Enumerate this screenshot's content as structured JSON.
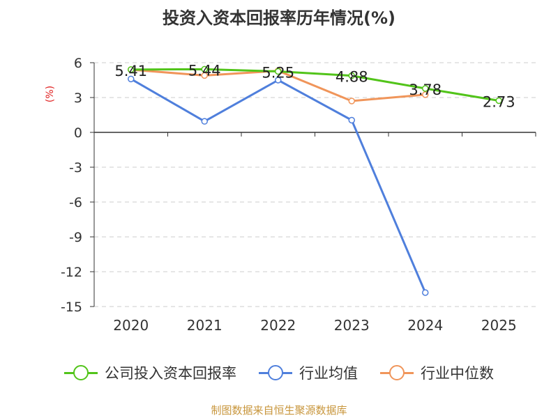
{
  "chart_data": {
    "type": "line",
    "title": "投资入资本回报率历年情况(%)",
    "ylabel": "(%)",
    "xlabel": "",
    "categories": [
      "2020",
      "2021",
      "2022",
      "2023",
      "2024",
      "2025"
    ],
    "ylim": [
      -15,
      6
    ],
    "yticks": [
      6,
      3,
      0,
      -3,
      -6,
      -9,
      -12,
      -15
    ],
    "grid": true,
    "legend_position": "bottom",
    "series": [
      {
        "name": "公司投入资本回报率",
        "color": "#52c41a",
        "values": [
          5.41,
          5.44,
          5.25,
          4.88,
          3.78,
          2.73
        ],
        "labels": [
          "5.41",
          "5.44",
          "5.25",
          "4.88",
          "3.78",
          "2.73"
        ]
      },
      {
        "name": "行业均值",
        "color": "#4f7fdc",
        "values": [
          4.6,
          0.95,
          4.5,
          1.05,
          -13.8,
          null
        ]
      },
      {
        "name": "行业中位数",
        "color": "#f0955a",
        "values": [
          5.4,
          4.9,
          5.3,
          2.7,
          3.25,
          null
        ]
      }
    ]
  },
  "title": "投资入资本回报率历年情况(%)",
  "unit_label": "(%)",
  "legend": [
    {
      "label": "公司投入资本回报率",
      "color": "#52c41a"
    },
    {
      "label": "行业均值",
      "color": "#4f7fdc"
    },
    {
      "label": "行业中位数",
      "color": "#f0955a"
    }
  ],
  "source": "制图数据来自恒生聚源数据库"
}
